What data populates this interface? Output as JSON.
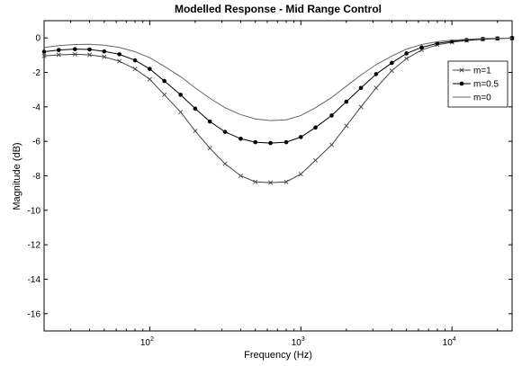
{
  "chart_data": {
    "type": "line",
    "title": "Modelled Response - Mid Range Control",
    "xlabel": "Frequency (Hz)",
    "ylabel": "Magnitude (dB)",
    "xscale": "log",
    "xlim": [
      20,
      25000
    ],
    "ylim": [
      -17,
      1
    ],
    "xticks": [
      {
        "value": 100,
        "base": "10",
        "exp": "2"
      },
      {
        "value": 1000,
        "base": "10",
        "exp": "3"
      },
      {
        "value": 10000,
        "base": "10",
        "exp": "4"
      }
    ],
    "yticks": [
      0,
      -2,
      -4,
      -6,
      -8,
      -10,
      -12,
      -14,
      -16
    ],
    "ytick_labels": [
      "0",
      "-2",
      "-4",
      "-6",
      "-8",
      "-10",
      "-12",
      "-14",
      "-16"
    ],
    "grid": false,
    "legend_position": "top-right",
    "series": [
      {
        "name": "m=1",
        "marker": "x",
        "color": "#444444",
        "x": [
          20,
          25,
          32,
          40,
          50,
          63,
          80,
          100,
          125,
          160,
          200,
          250,
          315,
          400,
          500,
          630,
          800,
          1000,
          1250,
          1600,
          2000,
          2500,
          3150,
          4000,
          5000,
          6300,
          8000,
          10000,
          12500,
          16000,
          20000,
          25000
        ],
        "y": [
          -1.05,
          -0.98,
          -0.95,
          -0.98,
          -1.1,
          -1.35,
          -1.8,
          -2.4,
          -3.3,
          -4.3,
          -5.4,
          -6.4,
          -7.3,
          -8.0,
          -8.35,
          -8.4,
          -8.35,
          -7.9,
          -7.1,
          -6.2,
          -5.1,
          -4.0,
          -2.9,
          -1.9,
          -1.2,
          -0.7,
          -0.4,
          -0.25,
          -0.15,
          -0.08,
          -0.04,
          -0.02
        ]
      },
      {
        "name": "m=0.5",
        "marker": "dot",
        "color": "#000000",
        "x": [
          20,
          25,
          32,
          40,
          50,
          63,
          80,
          100,
          125,
          160,
          200,
          250,
          315,
          400,
          500,
          630,
          800,
          1000,
          1250,
          1600,
          2000,
          2500,
          3150,
          4000,
          5000,
          6300,
          8000,
          10000,
          12500,
          16000,
          20000,
          25000
        ],
        "y": [
          -0.8,
          -0.7,
          -0.65,
          -0.67,
          -0.78,
          -0.95,
          -1.3,
          -1.8,
          -2.5,
          -3.3,
          -4.1,
          -4.85,
          -5.45,
          -5.85,
          -6.05,
          -6.1,
          -6.05,
          -5.75,
          -5.2,
          -4.5,
          -3.7,
          -2.9,
          -2.1,
          -1.45,
          -0.9,
          -0.55,
          -0.32,
          -0.2,
          -0.12,
          -0.06,
          -0.03,
          -0.01
        ]
      },
      {
        "name": "m=0",
        "marker": "none",
        "color": "#666666",
        "x": [
          20,
          25,
          32,
          40,
          50,
          63,
          80,
          100,
          125,
          160,
          200,
          250,
          315,
          400,
          500,
          630,
          800,
          1000,
          1250,
          1600,
          2000,
          2500,
          3150,
          4000,
          5000,
          6300,
          8000,
          10000,
          12500,
          16000,
          20000,
          25000
        ],
        "y": [
          -0.55,
          -0.45,
          -0.38,
          -0.37,
          -0.42,
          -0.55,
          -0.8,
          -1.15,
          -1.65,
          -2.25,
          -2.9,
          -3.5,
          -4.05,
          -4.45,
          -4.7,
          -4.8,
          -4.75,
          -4.5,
          -4.05,
          -3.45,
          -2.8,
          -2.15,
          -1.55,
          -1.05,
          -0.65,
          -0.38,
          -0.22,
          -0.13,
          -0.08,
          -0.04,
          -0.02,
          -0.01
        ]
      }
    ]
  }
}
